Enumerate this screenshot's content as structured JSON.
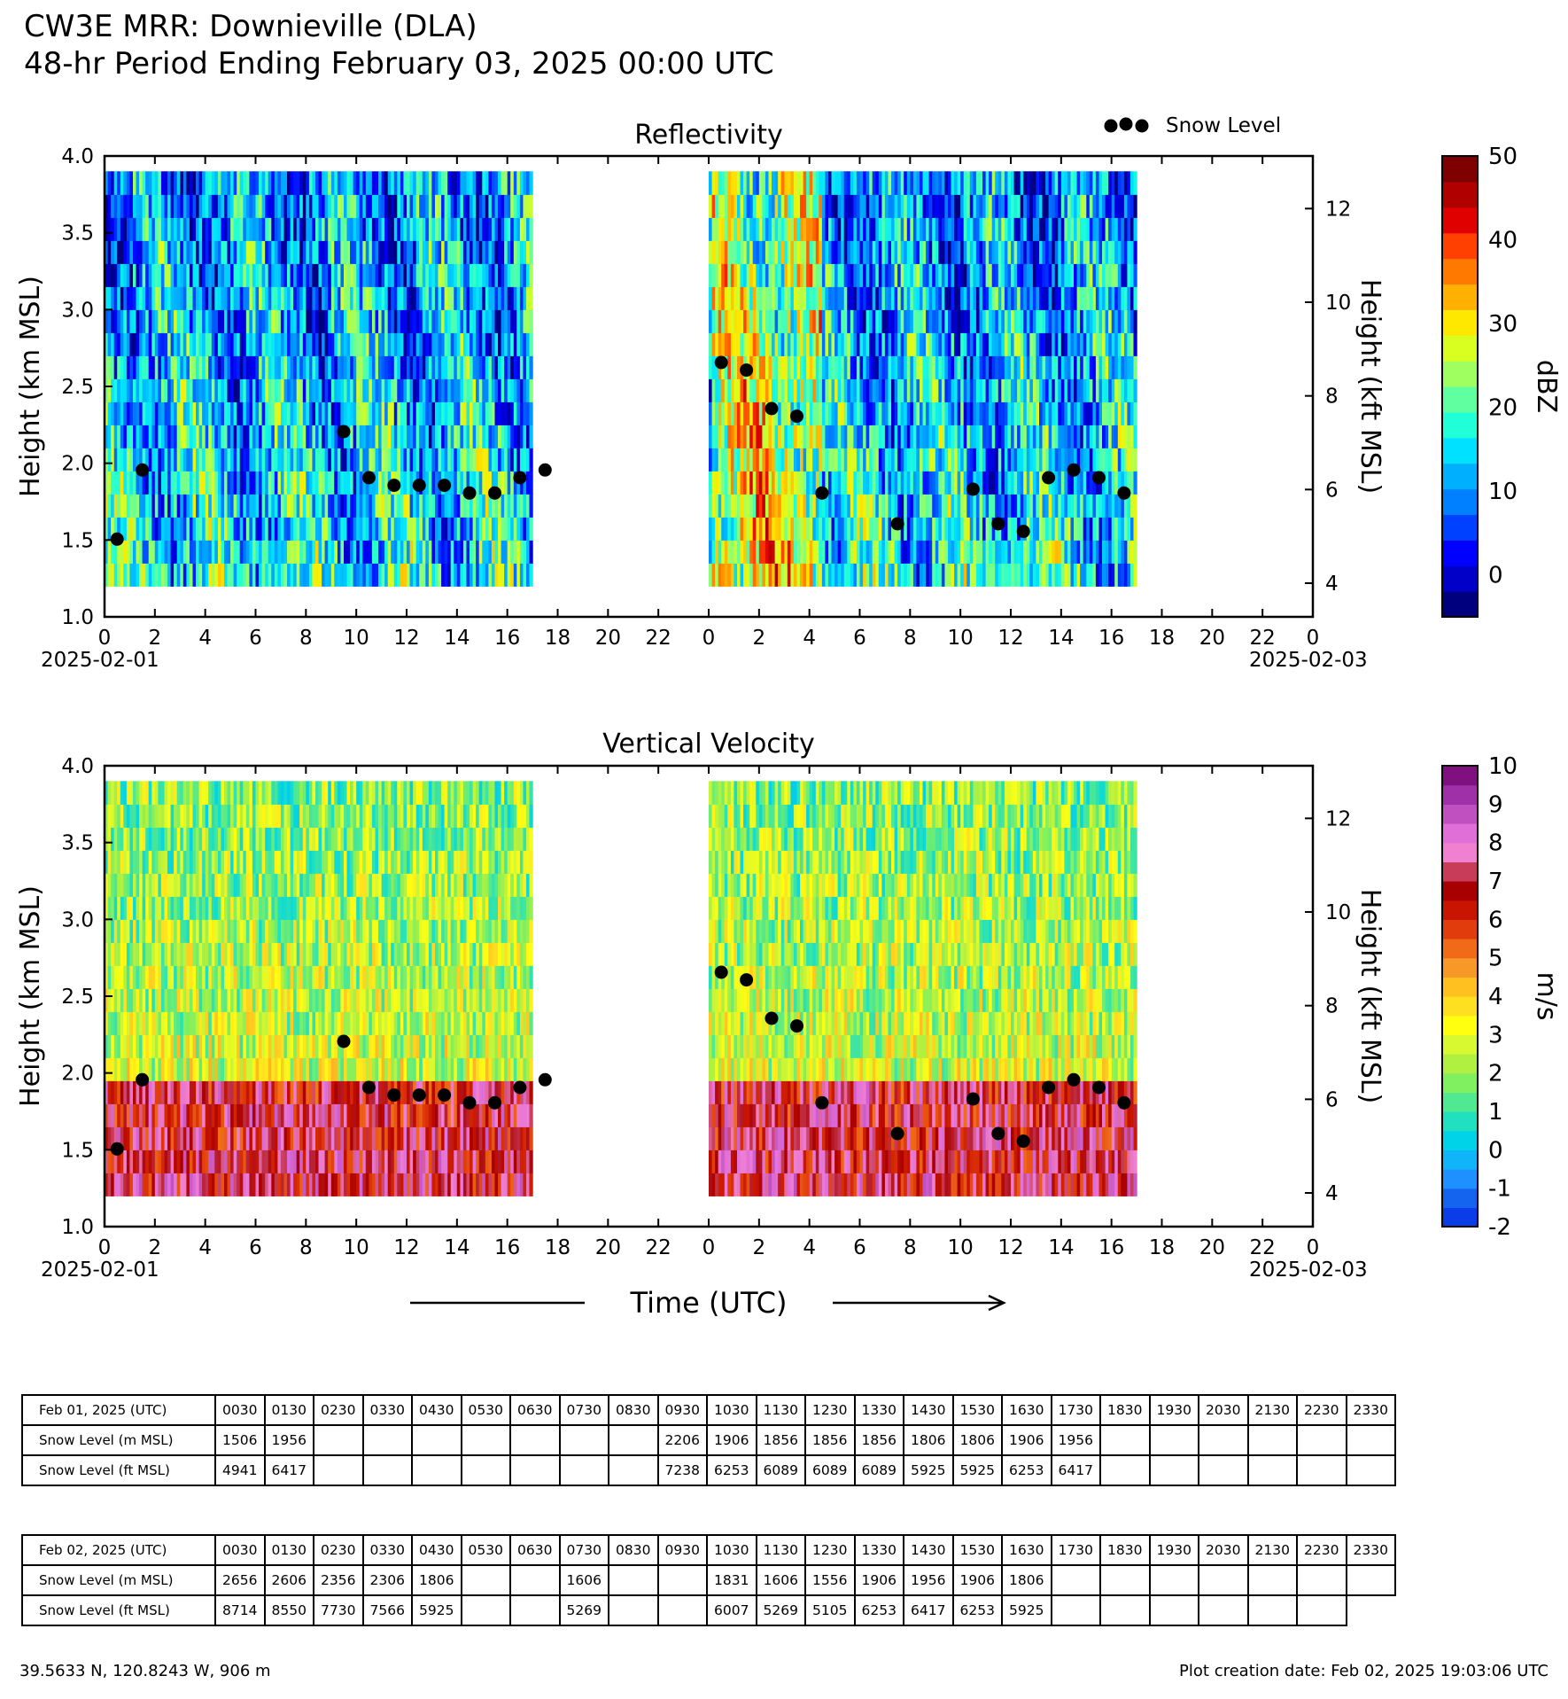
{
  "header": {
    "title_line1": "CW3E MRR: Downieville (DLA)",
    "title_line2": "48-hr Period Ending February 03, 2025 00:00 UTC"
  },
  "chart_data": [
    {
      "type": "heatmap",
      "title": "Reflectivity",
      "ylabel": "Height (km MSL)",
      "ylabel_right": "Height (kft MSL)",
      "ylim": [
        1.0,
        4.0
      ],
      "y_ticks": [
        "1.0",
        "1.5",
        "2.0",
        "2.5",
        "3.0",
        "3.5",
        "4.0"
      ],
      "y_ticks_right": [
        "4",
        "6",
        "8",
        "10",
        "12"
      ],
      "x_ticks": [
        "0",
        "2",
        "4",
        "6",
        "8",
        "10",
        "12",
        "14",
        "16",
        "18",
        "20",
        "22",
        "0",
        "2",
        "4",
        "6",
        "8",
        "10",
        "12",
        "14",
        "16",
        "18",
        "20",
        "22",
        "0"
      ],
      "x_date_start": "2025-02-01",
      "x_date_end": "2025-02-03",
      "legend": {
        "label": "Snow Level",
        "position": "top-right"
      },
      "colorbar": {
        "label": "dBZ",
        "range": [
          -5,
          50
        ],
        "tick_labels": [
          "0",
          "10",
          "20",
          "30",
          "40",
          "50"
        ],
        "tick_values": [
          0,
          10,
          20,
          30,
          40,
          50
        ],
        "colors": [
          "#00007f",
          "#0000c8",
          "#0000ff",
          "#0040ff",
          "#0080ff",
          "#00b0ff",
          "#00e0ff",
          "#20ffd8",
          "#60ffa0",
          "#a0ff60",
          "#d8ff20",
          "#ffe800",
          "#ffb000",
          "#ff7800",
          "#ff4000",
          "#e00000",
          "#b00000",
          "#7f0000"
        ]
      },
      "data_coverage_hours": [
        [
          0,
          17
        ],
        [
          24,
          41
        ]
      ],
      "echo_top_km": 3.9,
      "echo_bottom_km": 1.2,
      "snow_level": {
        "x_hours": [
          0.5,
          1.5,
          9.5,
          10.5,
          11.5,
          12.5,
          13.5,
          14.5,
          15.5,
          16.5,
          17.5,
          24.5,
          25.5,
          26.5,
          27.5,
          28.5,
          31.5,
          34.5,
          35.5,
          36.5,
          37.5,
          38.5,
          39.5,
          40.5
        ],
        "y_km": [
          1.506,
          1.956,
          2.206,
          1.906,
          1.856,
          1.856,
          1.856,
          1.806,
          1.806,
          1.906,
          1.956,
          2.656,
          2.606,
          2.356,
          2.306,
          1.806,
          1.606,
          1.831,
          1.606,
          1.556,
          1.906,
          1.956,
          1.906,
          1.806
        ]
      }
    },
    {
      "type": "heatmap",
      "title": "Vertical Velocity",
      "ylabel": "Height (km MSL)",
      "ylabel_right": "Height (kft MSL)",
      "xlabel": "Time (UTC)",
      "ylim": [
        1.0,
        4.0
      ],
      "y_ticks": [
        "1.0",
        "1.5",
        "2.0",
        "2.5",
        "3.0",
        "3.5",
        "4.0"
      ],
      "y_ticks_right": [
        "4",
        "6",
        "8",
        "10",
        "12"
      ],
      "x_ticks": [
        "0",
        "2",
        "4",
        "6",
        "8",
        "10",
        "12",
        "14",
        "16",
        "18",
        "20",
        "22",
        "0",
        "2",
        "4",
        "6",
        "8",
        "10",
        "12",
        "14",
        "16",
        "18",
        "20",
        "22",
        "0"
      ],
      "x_date_start": "2025-02-01",
      "x_date_end": "2025-02-03",
      "colorbar": {
        "label": "m/s",
        "range": [
          -2,
          10
        ],
        "tick_labels": [
          "-2",
          "-1",
          "0",
          "1",
          "2",
          "3",
          "4",
          "5",
          "6",
          "7",
          "8",
          "9",
          "10"
        ],
        "tick_values": [
          -2,
          -1,
          0,
          1,
          2,
          3,
          4,
          5,
          6,
          7,
          8,
          9,
          10
        ],
        "colors": [
          "#0a3ce8",
          "#1464f0",
          "#1e90ff",
          "#10b4f8",
          "#00d2e8",
          "#20e0c0",
          "#50e890",
          "#80f060",
          "#b0f040",
          "#d8f830",
          "#ffff10",
          "#ffe020",
          "#ffc020",
          "#f89828",
          "#f06a18",
          "#e03c0c",
          "#c81400",
          "#a80000",
          "#c83c5a",
          "#f080d0",
          "#e070d8",
          "#c050c0",
          "#a030a8",
          "#801080"
        ]
      },
      "data_coverage_hours": [
        [
          0,
          17
        ],
        [
          24,
          41
        ]
      ],
      "echo_top_km": 3.9,
      "echo_bottom_km": 1.2,
      "snow_level": {
        "x_hours": [
          0.5,
          1.5,
          9.5,
          10.5,
          11.5,
          12.5,
          13.5,
          14.5,
          15.5,
          16.5,
          17.5,
          24.5,
          25.5,
          26.5,
          27.5,
          28.5,
          31.5,
          34.5,
          35.5,
          36.5,
          37.5,
          38.5,
          39.5,
          40.5
        ],
        "y_km": [
          1.506,
          1.956,
          2.206,
          1.906,
          1.856,
          1.856,
          1.856,
          1.806,
          1.806,
          1.906,
          1.956,
          2.656,
          2.606,
          2.356,
          2.306,
          1.806,
          1.606,
          1.831,
          1.606,
          1.556,
          1.906,
          1.956,
          1.906,
          1.806
        ]
      }
    },
    {
      "type": "table",
      "title": "Feb 01, 2025 (UTC)",
      "columns": [
        "0030",
        "0130",
        "0230",
        "0330",
        "0430",
        "0530",
        "0630",
        "0730",
        "0830",
        "0930",
        "1030",
        "1130",
        "1230",
        "1330",
        "1430",
        "1530",
        "1630",
        "1730",
        "1830",
        "1930",
        "2030",
        "2130",
        "2230",
        "2330"
      ],
      "rows": [
        {
          "label": "Snow Level (m MSL)",
          "values": [
            "1506",
            "1956",
            "",
            "",
            "",
            "",
            "",
            "",
            "",
            "2206",
            "1906",
            "1856",
            "1856",
            "1856",
            "1806",
            "1806",
            "1906",
            "1956",
            "",
            "",
            "",
            "",
            "",
            ""
          ]
        },
        {
          "label": "Snow Level (ft MSL)",
          "values": [
            "4941",
            "6417",
            "",
            "",
            "",
            "",
            "",
            "",
            "",
            "7238",
            "6253",
            "6089",
            "6089",
            "6089",
            "5925",
            "5925",
            "6253",
            "6417",
            "",
            "",
            "",
            "",
            "",
            ""
          ]
        }
      ]
    },
    {
      "type": "table",
      "title": "Feb 02, 2025 (UTC)",
      "columns": [
        "0030",
        "0130",
        "0230",
        "0330",
        "0430",
        "0530",
        "0630",
        "0730",
        "0830",
        "0930",
        "1030",
        "1130",
        "1230",
        "1330",
        "1430",
        "1530",
        "1630",
        "1730",
        "1830",
        "1930",
        "2030",
        "2130",
        "2230",
        "2330"
      ],
      "rows": [
        {
          "label": "Snow Level (m MSL)",
          "values": [
            "2656",
            "2606",
            "2356",
            "2306",
            "1806",
            "",
            "",
            "1606",
            "",
            "",
            "1831",
            "1606",
            "1556",
            "1906",
            "1956",
            "1906",
            "1806",
            "",
            "",
            "",
            "",
            "",
            "",
            ""
          ]
        },
        {
          "label": "Snow Level (ft MSL)",
          "values": [
            "8714",
            "8550",
            "7730",
            "7566",
            "5925",
            "",
            "",
            "5269",
            "",
            "",
            "6007",
            "5269",
            "5105",
            "6253",
            "6417",
            "6253",
            "5925",
            "",
            "",
            "",
            "",
            "",
            ""
          ]
        }
      ]
    }
  ],
  "footer": {
    "location": "39.5633 N, 120.8243 W, 906 m",
    "created": "Plot creation date: Feb 02, 2025 19:03:06 UTC"
  }
}
